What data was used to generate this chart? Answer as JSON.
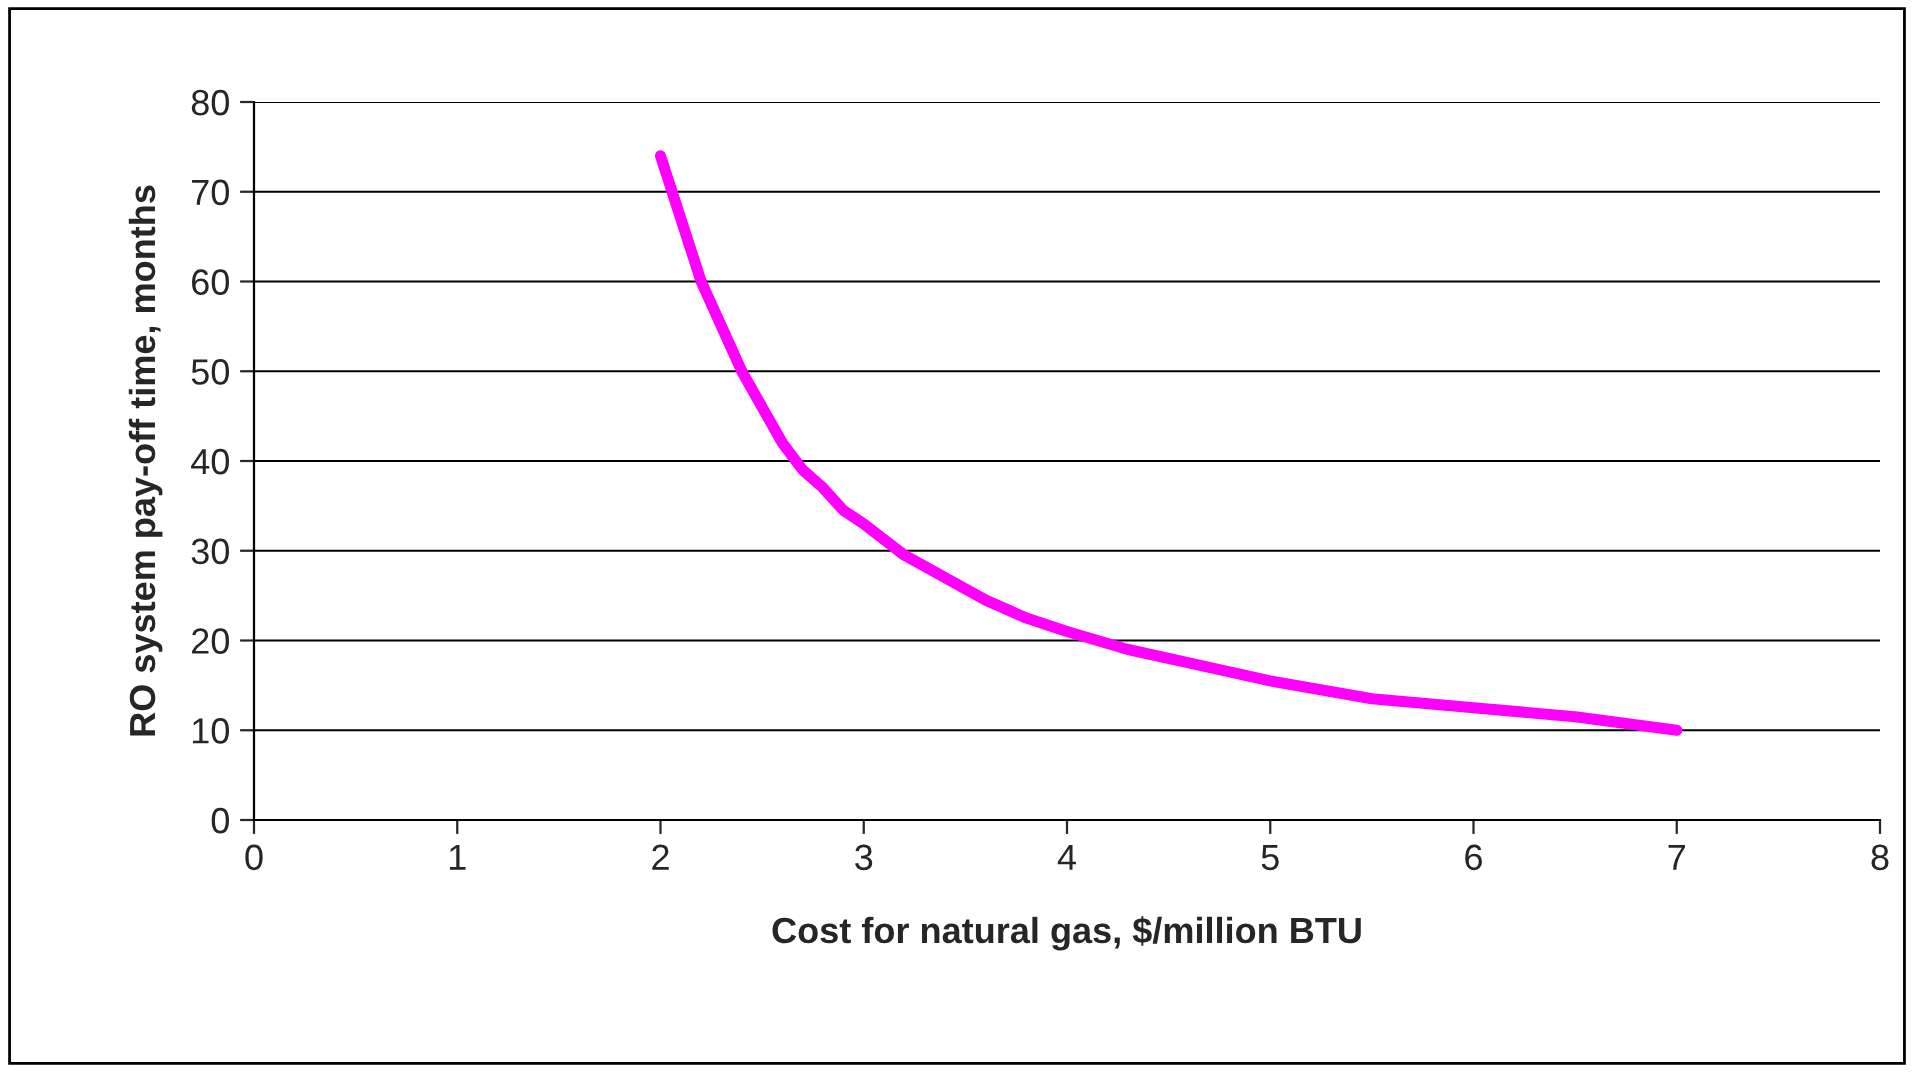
{
  "chart_data": {
    "type": "line",
    "xlabel": "Cost for natural gas, $/million BTU",
    "ylabel": "RO system pay-off time, months",
    "xlim": [
      0,
      8
    ],
    "xticks": [
      0,
      1,
      2,
      3,
      4,
      5,
      6,
      7,
      8
    ],
    "ylim": [
      0,
      80
    ],
    "yticks": [
      0,
      10,
      20,
      30,
      40,
      50,
      60,
      70,
      80
    ],
    "grid": "y",
    "legend": false,
    "marker": "none",
    "line_style": "solid",
    "series": [
      {
        "color": "#ff00ff",
        "x": [
          2.0,
          2.1,
          2.2,
          2.3,
          2.4,
          2.5,
          2.6,
          2.7,
          2.8,
          2.9,
          3.0,
          3.2,
          3.4,
          3.6,
          3.8,
          4.0,
          4.3,
          4.6,
          5.0,
          5.5,
          6.0,
          6.5,
          7.0
        ],
        "values": [
          74,
          67,
          60,
          55,
          50,
          46,
          42,
          39,
          37,
          34.5,
          33,
          29.5,
          27,
          24.5,
          22.5,
          21,
          19,
          17.5,
          15.5,
          13.5,
          12.5,
          11.5,
          10
        ]
      }
    ]
  }
}
